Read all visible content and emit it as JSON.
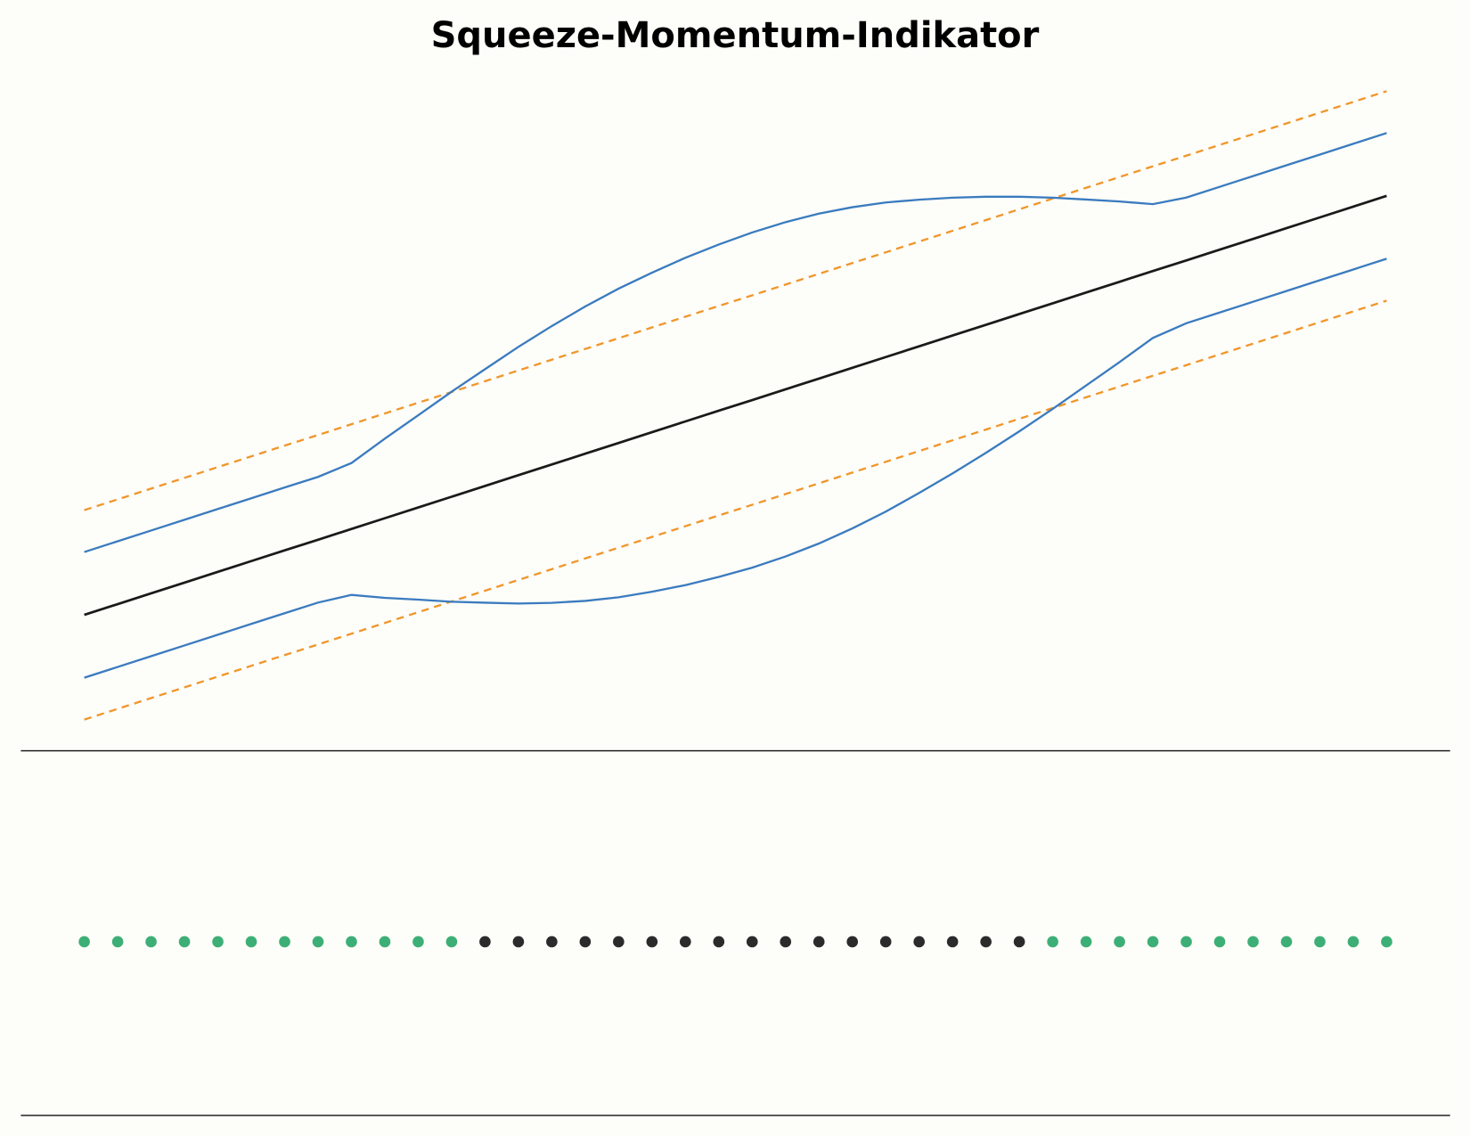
{
  "chart_data": [
    {
      "type": "line",
      "title": "Squeeze-Momentum-Indikator",
      "x": [
        0,
        1,
        2,
        3,
        4,
        5,
        6,
        7,
        8,
        9,
        10,
        11,
        12,
        13,
        14,
        15,
        16,
        17,
        18,
        19,
        20,
        21,
        22,
        23,
        24,
        25,
        26,
        27,
        28,
        29,
        30,
        31,
        32,
        33,
        34,
        35,
        36,
        37,
        38,
        39
      ],
      "xlim": [
        -1.9,
        40.9
      ],
      "ylim": [
        90,
        140
      ],
      "series": [
        {
          "color": "#f0962a",
          "dash": true,
          "values": [
            107.5,
            108.27,
            109.04,
            109.81,
            110.58,
            111.35,
            112.12,
            112.88,
            113.65,
            114.42,
            115.19,
            115.96,
            116.73,
            117.5,
            118.27,
            119.04,
            119.81,
            120.58,
            121.35,
            122.12,
            122.88,
            123.65,
            124.42,
            125.19,
            125.96,
            126.73,
            127.5,
            128.27,
            129.04,
            129.81,
            130.58,
            131.35,
            132.12,
            132.88,
            133.65,
            134.42,
            135.19,
            135.96,
            136.73,
            137.5
          ]
        },
        {
          "color": "#f0962a",
          "dash": true,
          "values": [
            92.5,
            93.27,
            94.04,
            94.81,
            95.58,
            96.35,
            97.12,
            97.88,
            98.65,
            99.42,
            100.19,
            100.96,
            101.73,
            102.5,
            103.27,
            104.04,
            104.81,
            105.58,
            106.35,
            107.12,
            107.88,
            108.65,
            109.42,
            110.19,
            110.96,
            111.73,
            112.5,
            113.27,
            114.04,
            114.81,
            115.58,
            116.35,
            117.12,
            117.88,
            118.65,
            119.42,
            120.19,
            120.96,
            121.73,
            122.5
          ]
        },
        {
          "color": "#3a7bbf",
          "dash": false,
          "values": [
            104.5,
            105.27,
            106.04,
            106.81,
            107.58,
            108.35,
            109.12,
            109.88,
            110.87,
            112.62,
            114.29,
            115.98,
            117.59,
            119.19,
            120.68,
            122.08,
            123.36,
            124.5,
            125.57,
            126.52,
            127.38,
            128.12,
            128.73,
            129.19,
            129.53,
            129.73,
            129.87,
            129.94,
            129.94,
            129.87,
            129.74,
            129.6,
            129.41,
            129.88,
            130.65,
            131.42,
            132.19,
            132.96,
            133.73,
            134.5
          ]
        },
        {
          "color": "#3a7bbf",
          "dash": false,
          "values": [
            95.5,
            96.27,
            97.04,
            97.81,
            98.58,
            99.35,
            100.12,
            100.88,
            101.43,
            101.22,
            101.09,
            100.94,
            100.87,
            100.81,
            100.86,
            101.0,
            101.26,
            101.66,
            102.13,
            102.72,
            103.38,
            104.18,
            105.11,
            106.19,
            107.39,
            108.73,
            110.13,
            111.6,
            113.14,
            114.75,
            116.42,
            118.1,
            119.83,
            120.88,
            121.65,
            122.42,
            123.19,
            123.96,
            124.73,
            125.5
          ]
        },
        {
          "color": "#1a1a1a",
          "dash": false,
          "values": [
            100,
            100.77,
            101.54,
            102.31,
            103.08,
            103.85,
            104.62,
            105.38,
            106.15,
            106.92,
            107.69,
            108.46,
            109.23,
            110,
            110.77,
            111.54,
            112.31,
            113.08,
            113.85,
            114.62,
            115.38,
            116.15,
            116.92,
            117.69,
            118.46,
            119.23,
            120,
            120.77,
            121.54,
            122.31,
            123.08,
            123.85,
            124.62,
            125.38,
            126.15,
            126.92,
            127.69,
            128.46,
            129.23,
            130
          ]
        }
      ]
    },
    {
      "type": "scatter",
      "x": [
        0,
        1,
        2,
        3,
        4,
        5,
        6,
        7,
        8,
        9,
        10,
        11,
        12,
        13,
        14,
        15,
        16,
        17,
        18,
        19,
        20,
        21,
        22,
        23,
        24,
        25,
        26,
        27,
        28,
        29,
        30,
        31,
        32,
        33,
        34,
        35,
        36,
        37,
        38,
        39
      ],
      "xlim": [
        -1.9,
        40.9
      ],
      "ylim": [
        -0.05,
        0.055
      ],
      "values": [
        0,
        0,
        0,
        0,
        0,
        0,
        0,
        0,
        0,
        0,
        0,
        0,
        0,
        0,
        0,
        0,
        0,
        0,
        0,
        0,
        0,
        0,
        0,
        0,
        0,
        0,
        0,
        0,
        0,
        0,
        0,
        0,
        0,
        0,
        0,
        0,
        0,
        0,
        0,
        0
      ],
      "colors": [
        "#3daf76",
        "#3daf76",
        "#3daf76",
        "#3daf76",
        "#3daf76",
        "#3daf76",
        "#3daf76",
        "#3daf76",
        "#3daf76",
        "#3daf76",
        "#3daf76",
        "#3daf76",
        "#2b2b2b",
        "#2b2b2b",
        "#2b2b2b",
        "#2b2b2b",
        "#2b2b2b",
        "#2b2b2b",
        "#2b2b2b",
        "#2b2b2b",
        "#2b2b2b",
        "#2b2b2b",
        "#2b2b2b",
        "#2b2b2b",
        "#2b2b2b",
        "#2b2b2b",
        "#2b2b2b",
        "#2b2b2b",
        "#2b2b2b",
        "#3daf76",
        "#3daf76",
        "#3daf76",
        "#3daf76",
        "#3daf76",
        "#3daf76",
        "#3daf76",
        "#3daf76",
        "#3daf76",
        "#3daf76",
        "#3daf76"
      ]
    }
  ]
}
